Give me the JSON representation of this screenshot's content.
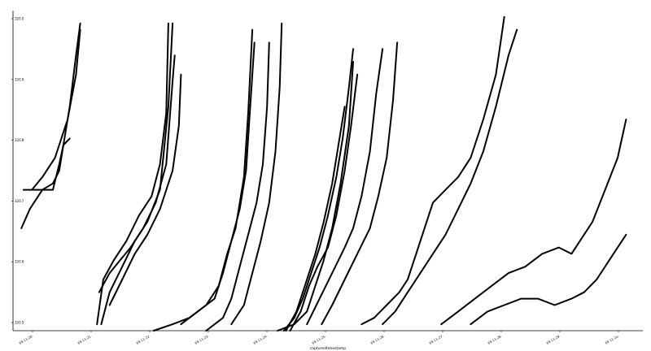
{
  "chart_data": {
    "type": "line",
    "title": "",
    "xlabel": "capturedtimestamp",
    "ylabel": "",
    "ylim": [
      9.5,
      10.0
    ],
    "y_ticks": [
      "320.0",
      "320.9",
      "320.8",
      "320.7",
      "320.6",
      "320.5"
    ],
    "x_ticks": [
      "09 11:20",
      "09 11:21",
      "09 11:22",
      "09 11:23",
      "09 11:24",
      "09 11:25",
      "09 11:26",
      "09 11:27",
      "09 11:28",
      "09 11:29",
      "09 11:2a"
    ],
    "grid": false,
    "legend": "none",
    "line_color": "#000000",
    "series": [
      {
        "values": [
          [
            0.2,
            9.66
          ],
          [
            0.4,
            9.69
          ],
          [
            0.7,
            9.72
          ],
          [
            0.95,
            9.73
          ],
          [
            1.1,
            9.75
          ],
          [
            1.2,
            9.79
          ],
          [
            1.35,
            9.85
          ],
          [
            1.5,
            9.93
          ],
          [
            1.6,
            9.98
          ]
        ]
      },
      {
        "values": [
          [
            0.25,
            9.72
          ],
          [
            0.6,
            9.72
          ],
          [
            0.95,
            9.72
          ],
          [
            1.1,
            9.76
          ],
          [
            1.2,
            9.79
          ],
          [
            1.35,
            9.8
          ]
        ]
      },
      {
        "values": [
          [
            0.45,
            9.72
          ],
          [
            0.7,
            9.74
          ],
          [
            1.0,
            9.77
          ],
          [
            1.3,
            9.83
          ],
          [
            1.5,
            9.9
          ],
          [
            1.6,
            9.97
          ]
        ]
      },
      {
        "values": [
          [
            2.0,
            9.51
          ],
          [
            2.15,
            9.58
          ],
          [
            2.4,
            9.61
          ],
          [
            2.7,
            9.64
          ],
          [
            3.0,
            9.68
          ],
          [
            3.3,
            9.71
          ],
          [
            3.5,
            9.76
          ],
          [
            3.65,
            9.84
          ],
          [
            3.7,
            9.98
          ]
        ]
      },
      {
        "values": [
          [
            2.1,
            9.51
          ],
          [
            2.3,
            9.56
          ],
          [
            2.6,
            9.6
          ],
          [
            2.9,
            9.64
          ],
          [
            3.2,
            9.67
          ],
          [
            3.5,
            9.72
          ],
          [
            3.7,
            9.85
          ],
          [
            3.8,
            9.98
          ]
        ]
      },
      {
        "values": [
          [
            2.05,
            9.56
          ],
          [
            2.3,
            9.59
          ],
          [
            2.55,
            9.61
          ],
          [
            2.8,
            9.63
          ],
          [
            3.1,
            9.66
          ],
          [
            3.4,
            9.7
          ],
          [
            3.65,
            9.76
          ],
          [
            3.8,
            9.89
          ],
          [
            3.85,
            9.93
          ]
        ]
      },
      {
        "values": [
          [
            2.3,
            9.54
          ],
          [
            2.6,
            9.58
          ],
          [
            2.9,
            9.62
          ],
          [
            3.2,
            9.65
          ],
          [
            3.5,
            9.69
          ],
          [
            3.8,
            9.75
          ],
          [
            3.95,
            9.82
          ],
          [
            4.0,
            9.9
          ]
        ]
      },
      {
        "values": [
          [
            3.35,
            9.5
          ],
          [
            3.8,
            9.51
          ],
          [
            4.2,
            9.52
          ],
          [
            4.6,
            9.54
          ],
          [
            4.9,
            9.57
          ],
          [
            5.1,
            9.62
          ],
          [
            5.3,
            9.66
          ],
          [
            5.5,
            9.74
          ],
          [
            5.6,
            9.84
          ],
          [
            5.7,
            9.97
          ]
        ]
      },
      {
        "values": [
          [
            4.0,
            9.51
          ],
          [
            4.4,
            9.53
          ],
          [
            4.8,
            9.55
          ],
          [
            5.0,
            9.59
          ],
          [
            5.2,
            9.64
          ],
          [
            5.4,
            9.69
          ],
          [
            5.55,
            9.75
          ],
          [
            5.65,
            9.85
          ],
          [
            5.75,
            9.95
          ]
        ]
      },
      {
        "values": [
          [
            4.6,
            9.5
          ],
          [
            5.0,
            9.52
          ],
          [
            5.2,
            9.55
          ],
          [
            5.4,
            9.6
          ],
          [
            5.6,
            9.65
          ],
          [
            5.8,
            9.7
          ],
          [
            5.95,
            9.76
          ],
          [
            6.05,
            9.85
          ],
          [
            6.1,
            9.95
          ]
        ]
      },
      {
        "values": [
          [
            5.2,
            9.51
          ],
          [
            5.5,
            9.54
          ],
          [
            5.7,
            9.59
          ],
          [
            5.9,
            9.64
          ],
          [
            6.1,
            9.7
          ],
          [
            6.25,
            9.78
          ],
          [
            6.35,
            9.88
          ],
          [
            6.4,
            9.98
          ]
        ]
      },
      {
        "values": [
          [
            6.3,
            9.5
          ],
          [
            6.7,
            9.51
          ],
          [
            7.0,
            9.53
          ],
          [
            7.2,
            9.57
          ],
          [
            7.4,
            9.61
          ],
          [
            7.6,
            9.66
          ],
          [
            7.8,
            9.73
          ],
          [
            8.0,
            9.82
          ],
          [
            8.1,
            9.92
          ]
        ]
      },
      {
        "values": [
          [
            6.45,
            9.5
          ],
          [
            6.7,
            9.52
          ],
          [
            6.9,
            9.55
          ],
          [
            7.1,
            9.59
          ],
          [
            7.3,
            9.63
          ],
          [
            7.5,
            9.68
          ],
          [
            7.7,
            9.74
          ],
          [
            7.85,
            9.8
          ],
          [
            8.0,
            9.88
          ],
          [
            8.1,
            9.94
          ]
        ]
      },
      {
        "values": [
          [
            6.5,
            9.5
          ],
          [
            6.75,
            9.53
          ],
          [
            7.0,
            9.58
          ],
          [
            7.2,
            9.62
          ],
          [
            7.4,
            9.67
          ],
          [
            7.6,
            9.73
          ],
          [
            7.75,
            9.79
          ],
          [
            7.9,
            9.85
          ]
        ]
      },
      {
        "values": [
          [
            6.6,
            9.5
          ],
          [
            6.85,
            9.53
          ],
          [
            7.05,
            9.57
          ],
          [
            7.25,
            9.6
          ],
          [
            7.5,
            9.63
          ],
          [
            7.7,
            9.68
          ],
          [
            7.9,
            9.75
          ],
          [
            8.05,
            9.82
          ],
          [
            8.2,
            9.9
          ]
        ]
      },
      {
        "values": [
          [
            7.0,
            9.51
          ],
          [
            7.3,
            9.55
          ],
          [
            7.6,
            9.59
          ],
          [
            7.9,
            9.63
          ],
          [
            8.1,
            9.66
          ],
          [
            8.3,
            9.71
          ],
          [
            8.5,
            9.78
          ],
          [
            8.65,
            9.87
          ],
          [
            8.8,
            9.94
          ]
        ]
      },
      {
        "values": [
          [
            7.35,
            9.51
          ],
          [
            7.6,
            9.54
          ],
          [
            7.9,
            9.58
          ],
          [
            8.2,
            9.62
          ],
          [
            8.5,
            9.66
          ],
          [
            8.7,
            9.71
          ],
          [
            8.9,
            9.77
          ],
          [
            9.05,
            9.86
          ],
          [
            9.15,
            9.95
          ]
        ]
      },
      {
        "values": [
          [
            8.3,
            9.51
          ],
          [
            8.6,
            9.52
          ],
          [
            8.9,
            9.54
          ],
          [
            9.2,
            9.56
          ],
          [
            9.4,
            9.58
          ],
          [
            9.6,
            9.62
          ],
          [
            9.8,
            9.66
          ],
          [
            10.0,
            9.7
          ],
          [
            10.3,
            9.72
          ],
          [
            10.6,
            9.74
          ],
          [
            10.9,
            9.77
          ],
          [
            11.2,
            9.83
          ],
          [
            11.5,
            9.9
          ],
          [
            11.7,
            9.99
          ]
        ]
      },
      {
        "values": [
          [
            8.8,
            9.51
          ],
          [
            9.1,
            9.53
          ],
          [
            9.4,
            9.56
          ],
          [
            9.7,
            9.59
          ],
          [
            10.0,
            9.62
          ],
          [
            10.3,
            9.65
          ],
          [
            10.6,
            9.69
          ],
          [
            10.9,
            9.73
          ],
          [
            11.2,
            9.78
          ],
          [
            11.5,
            9.85
          ],
          [
            11.8,
            9.93
          ],
          [
            12.0,
            9.97
          ]
        ]
      },
      {
        "values": [
          [
            10.2,
            9.51
          ],
          [
            10.6,
            9.53
          ],
          [
            11.0,
            9.55
          ],
          [
            11.4,
            9.57
          ],
          [
            11.8,
            9.59
          ],
          [
            12.2,
            9.6
          ],
          [
            12.6,
            9.62
          ],
          [
            13.0,
            9.63
          ],
          [
            13.3,
            9.62
          ],
          [
            13.5,
            9.64
          ],
          [
            13.8,
            9.67
          ],
          [
            14.1,
            9.72
          ],
          [
            14.4,
            9.77
          ],
          [
            14.6,
            9.83
          ]
        ]
      },
      {
        "values": [
          [
            10.9,
            9.51
          ],
          [
            11.3,
            9.53
          ],
          [
            11.7,
            9.54
          ],
          [
            12.1,
            9.55
          ],
          [
            12.5,
            9.55
          ],
          [
            12.9,
            9.54
          ],
          [
            13.3,
            9.55
          ],
          [
            13.6,
            9.56
          ],
          [
            13.9,
            9.58
          ],
          [
            14.2,
            9.61
          ],
          [
            14.4,
            9.63
          ],
          [
            14.6,
            9.65
          ]
        ]
      }
    ]
  }
}
